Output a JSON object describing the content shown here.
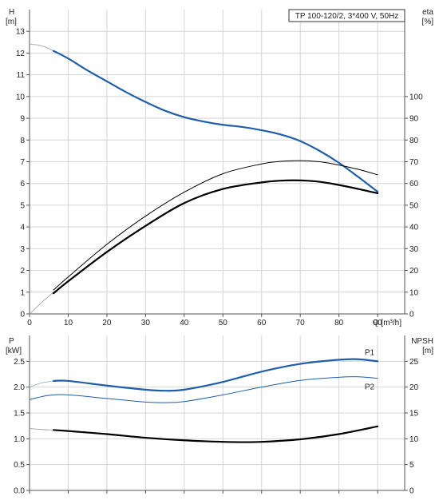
{
  "legend_box": "TP 100-120/2, 3*400 V, 50Hz",
  "chart_data": [
    {
      "type": "line",
      "left_axis_label": [
        "H",
        "[m]"
      ],
      "right_axis_label": [
        "eta",
        "[%]"
      ],
      "xlabel": "Q [m³/h]",
      "xlim": [
        0,
        97
      ],
      "ylim": [
        0,
        14
      ],
      "y2lim": [
        0,
        140
      ],
      "x_ticks": [
        0,
        10,
        20,
        30,
        40,
        50,
        60,
        70,
        80,
        90
      ],
      "y_ticks": [
        0,
        1,
        2,
        3,
        4,
        5,
        6,
        7,
        8,
        9,
        10,
        11,
        12,
        13
      ],
      "y2_ticks": [
        0,
        10,
        20,
        30,
        40,
        50,
        60,
        70,
        80,
        90,
        100
      ],
      "grid": true,
      "series": [
        {
          "id": "head-extrapolated",
          "axis": "left",
          "color": "#999999",
          "width": 0.8,
          "x": [
            0,
            2,
            4,
            6.2
          ],
          "y": [
            12.4,
            12.38,
            12.28,
            12.1
          ]
        },
        {
          "id": "head",
          "axis": "left",
          "color": "#1f5ea8",
          "width": 2.2,
          "x": [
            6.2,
            10,
            15,
            20,
            25,
            30,
            35,
            40,
            45,
            50,
            55,
            60,
            65,
            70,
            75,
            80,
            85,
            90
          ],
          "y": [
            12.1,
            11.75,
            11.2,
            10.7,
            10.2,
            9.75,
            9.35,
            9.05,
            8.85,
            8.7,
            8.6,
            8.45,
            8.25,
            7.95,
            7.5,
            6.95,
            6.3,
            5.62
          ]
        },
        {
          "id": "eta-total",
          "axis": "right",
          "color": "#000000",
          "width": 1,
          "x": [
            6.2,
            10,
            20,
            30,
            40,
            50,
            60,
            65,
            70,
            75,
            80,
            85,
            90
          ],
          "y": [
            11,
            17,
            32,
            45,
            56,
            64.5,
            69,
            70.2,
            70.5,
            70,
            68.5,
            66.5,
            64
          ]
        },
        {
          "id": "eta-extrapolated",
          "axis": "right",
          "color": "#999999",
          "width": 0.8,
          "x": [
            0,
            3,
            6.2
          ],
          "y": [
            0,
            5,
            10
          ]
        },
        {
          "id": "eta-pump",
          "axis": "right",
          "color": "#000000",
          "width": 2.2,
          "x": [
            6.2,
            10,
            20,
            30,
            40,
            50,
            60,
            65,
            70,
            75,
            80,
            85,
            90
          ],
          "y": [
            9.5,
            15,
            28.5,
            40.5,
            51,
            57.5,
            60.5,
            61.3,
            61.4,
            60.8,
            59.3,
            57.5,
            55.5
          ]
        }
      ]
    },
    {
      "type": "line",
      "left_axis_label": [
        "P",
        "[kW]"
      ],
      "right_axis_label": [
        "NPSH",
        "[m]"
      ],
      "xlim": [
        0,
        97
      ],
      "ylim": [
        0,
        3
      ],
      "y2lim": [
        0,
        30
      ],
      "x_ticks": [
        0,
        10,
        20,
        30,
        40,
        50,
        60,
        70,
        80,
        90
      ],
      "y_ticks": [
        0.0,
        0.5,
        1.0,
        1.5,
        2.0,
        2.5
      ],
      "y_tick_labels": [
        "0.0",
        "0.5",
        "1.0",
        "1.5",
        "2.0",
        "2.5"
      ],
      "y2_ticks": [
        0,
        5,
        10,
        15,
        20,
        25
      ],
      "grid": true,
      "series": [
        {
          "id": "p1-extrapolated",
          "axis": "left",
          "color": "#8aa6c8",
          "width": 0.8,
          "x": [
            0,
            3,
            6.2
          ],
          "y": [
            2.0,
            2.08,
            2.12
          ]
        },
        {
          "id": "p1",
          "name": "P1",
          "axis": "left",
          "color": "#1f5ea8",
          "width": 2.2,
          "x": [
            6.2,
            10,
            20,
            30,
            35,
            40,
            50,
            60,
            70,
            80,
            85,
            90
          ],
          "y": [
            2.12,
            2.12,
            2.03,
            1.95,
            1.93,
            1.95,
            2.1,
            2.3,
            2.45,
            2.53,
            2.54,
            2.5
          ]
        },
        {
          "id": "p2",
          "name": "P2",
          "axis": "left",
          "color": "#1f5ea8",
          "width": 1,
          "x": [
            0,
            5,
            10,
            20,
            30,
            35,
            40,
            50,
            60,
            70,
            80,
            85,
            90
          ],
          "y": [
            1.76,
            1.84,
            1.85,
            1.78,
            1.71,
            1.7,
            1.72,
            1.85,
            2.0,
            2.13,
            2.19,
            2.2,
            2.17
          ]
        },
        {
          "id": "npsh-extrapolated",
          "axis": "right",
          "color": "#999999",
          "width": 0.8,
          "x": [
            0,
            3,
            6.2
          ],
          "y": [
            12,
            11.8,
            11.7
          ]
        },
        {
          "id": "npsh",
          "axis": "right",
          "color": "#000000",
          "width": 2.2,
          "x": [
            6.2,
            10,
            20,
            30,
            40,
            50,
            55,
            60,
            70,
            80,
            90
          ],
          "y": [
            11.7,
            11.5,
            10.9,
            10.2,
            9.7,
            9.4,
            9.35,
            9.4,
            9.9,
            10.9,
            12.4
          ]
        }
      ]
    }
  ]
}
